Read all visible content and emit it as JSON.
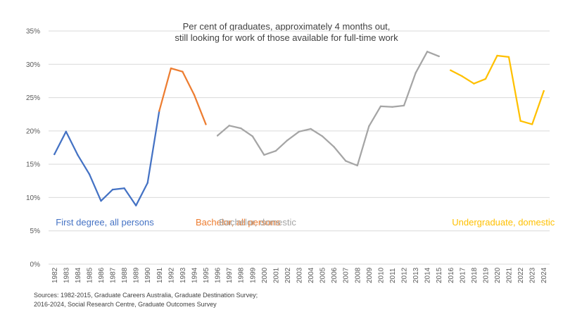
{
  "chart_data": {
    "type": "line",
    "title_lines": [
      "Per cent of graduates, approximately 4 months out,",
      "still looking for work of those available for full-time work"
    ],
    "xlabel": "",
    "ylabel": "",
    "ylim": [
      0,
      35
    ],
    "yticks": [
      "0%",
      "5%",
      "10%",
      "15%",
      "20%",
      "25%",
      "30%",
      "35%"
    ],
    "ytick_values": [
      0,
      5,
      10,
      15,
      20,
      25,
      30,
      35
    ],
    "categories": [
      "1982",
      "1983",
      "1984",
      "1985",
      "1986",
      "1987",
      "1988",
      "1989",
      "1990",
      "1991",
      "1992",
      "1993",
      "1994",
      "1995",
      "1996",
      "1997",
      "1998",
      "1999",
      "2000",
      "2001",
      "2002",
      "2003",
      "2004",
      "2005",
      "2006",
      "2007",
      "2008",
      "2009",
      "2010",
      "2011",
      "2012",
      "2013",
      "2014",
      "2015",
      "2016",
      "2017",
      "2018",
      "2019",
      "2020",
      "2021",
      "2022",
      "2023",
      "2024"
    ],
    "grid": true,
    "series": [
      {
        "name": "First degree, all persons",
        "color": "#4472c4",
        "x": [
          "1982",
          "1983",
          "1984",
          "1985",
          "1986",
          "1987",
          "1988",
          "1989",
          "1990",
          "1991"
        ],
        "values": [
          16.5,
          19.9,
          16.4,
          13.5,
          9.5,
          11.2,
          11.4,
          8.8,
          12.2,
          23.0
        ]
      },
      {
        "name": "Bachelor, all persons",
        "color": "#ed7d31",
        "x": [
          "1991",
          "1992",
          "1993",
          "1994",
          "1995"
        ],
        "values": [
          23.0,
          29.4,
          28.9,
          25.4,
          21.0
        ]
      },
      {
        "name": "Bachelor, domestic",
        "color": "#a5a5a5",
        "x": [
          "1996",
          "1997",
          "1998",
          "1999",
          "2000",
          "2001",
          "2002",
          "2003",
          "2004",
          "2005",
          "2006",
          "2007",
          "2008",
          "2009",
          "2010",
          "2011",
          "2012",
          "2013",
          "2014",
          "2015"
        ],
        "values": [
          19.3,
          20.8,
          20.4,
          19.2,
          16.4,
          17.0,
          18.6,
          19.9,
          20.3,
          19.2,
          17.6,
          15.5,
          14.8,
          20.7,
          23.7,
          23.6,
          23.8,
          28.7,
          31.9,
          31.2
        ]
      },
      {
        "name": "Undergraduate, domestic",
        "color": "#ffc000",
        "x": [
          "2016",
          "2017",
          "2018",
          "2019",
          "2020",
          "2021",
          "2022",
          "2023",
          "2024"
        ],
        "values": [
          29.1,
          28.2,
          27.1,
          27.8,
          31.3,
          31.1,
          21.5,
          21.0,
          26.0
        ]
      }
    ],
    "annotations": [
      {
        "text": "First degree, all persons",
        "color": "#4472c4",
        "anchor_category": "1982",
        "at_value": 5.8
      },
      {
        "text": "Bachelor, all persons",
        "color": "#ed7d31",
        "anchor_category": "1994",
        "at_value": 5.8
      },
      {
        "text": "Bachelor, domestic",
        "color": "#a5a5a5",
        "anchor_category": "1996",
        "at_value": 5.8
      },
      {
        "text": "Undergraduate, domestic",
        "color": "#ffc000",
        "anchor_category": "2016",
        "at_value": 5.8
      }
    ]
  },
  "sources": {
    "line1": "Sources: 1982-2015,  Graduate Careers Australia, Graduate Destination Survey;",
    "line2": "2016-2024, Social Research Centre, Graduate Outcomes Survey"
  }
}
